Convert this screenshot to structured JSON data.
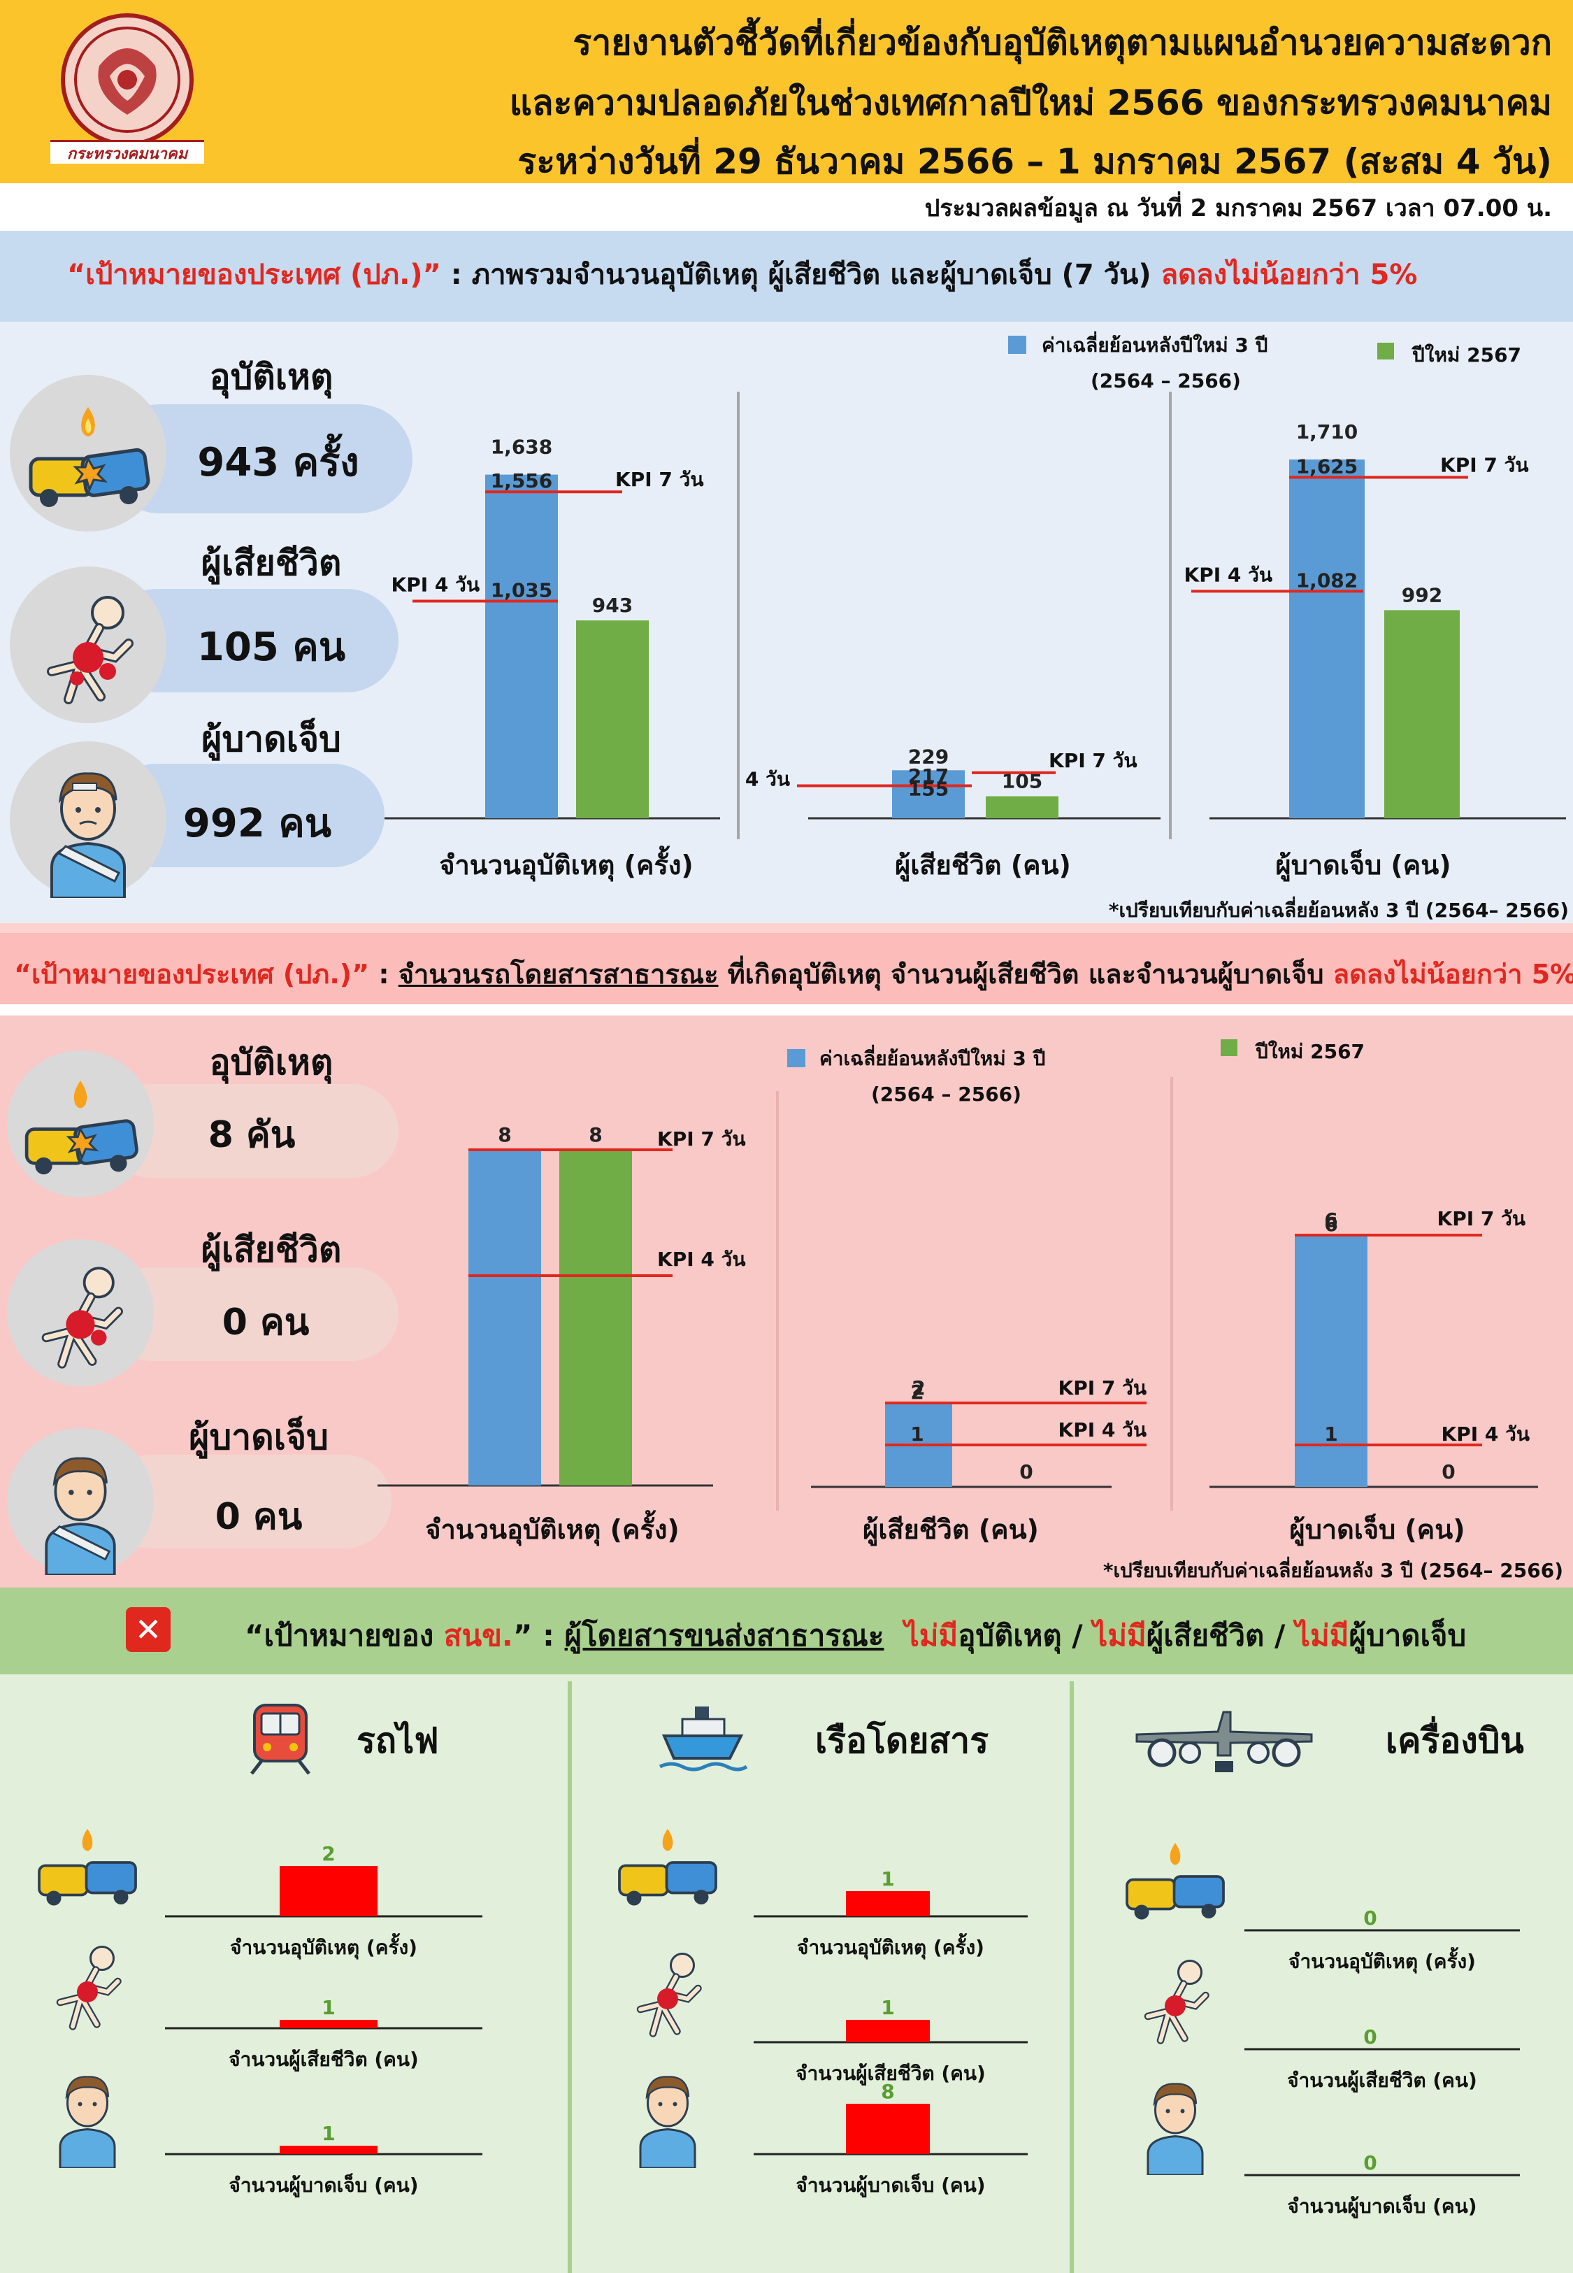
{
  "header": {
    "title_lines": [
      "รายงานตัวชี้วัดที่เกี่ยวข้องกับอุบัติเหตุตามแผนอำนวยความสะดวก",
      "และความปลอดภัยในช่วงเทศกาลปีใหม่ 2566 ของกระทรวงคมนาคม",
      "ระหว่างวันที่ 29 ธันวาคม 2566 – 1 มกราคม 2567 (สะสม 4 วัน)"
    ],
    "seal_text": "กระทรวงคมนาคม",
    "processed": "ประมวลผลข้อมูล ณ วันที่ 2 มกราคม 2567 เวลา 07.00 น."
  },
  "section1": {
    "banner": {
      "quote": "“เป้าหมายของประเทศ (ปภ.)”",
      "middle": " : ภาพรวมจำนวนอุบัติเหตุ ผู้เสียชีวิต และผู้บาดเจ็บ (7 วัน) ",
      "highlight": "ลดลงไม่น้อยกว่า 5%"
    },
    "stats": [
      {
        "label": "อุบัติเหตุ",
        "value": "943 ครั้ง",
        "icon": "car-crash-icon"
      },
      {
        "label": "ผู้เสียชีวิต",
        "value": "105 คน",
        "icon": "falling-person-icon"
      },
      {
        "label": "ผู้บาดเจ็บ",
        "value": "992 คน",
        "icon": "injured-person-icon"
      }
    ],
    "legend": {
      "avg": "ค่าเฉลี่ยย้อนหลังปีใหม่ 3 ปี",
      "avg_years": "(2564 – 2566)",
      "current": "ปีใหม่ 2567"
    },
    "note": "*เปรียบเทียบกับค่าเฉลี่ยย้อนหลัง 3 ปี (2564– 2566)"
  },
  "section2": {
    "banner": {
      "quote": "“เป้าหมายของประเทศ (ปภ.)”",
      "middle_a": " : ",
      "underlined": "จำนวนรถโดยสารสาธารณะ",
      "middle_b": " ที่เกิดอุบัติเหตุ จำนวนผู้เสียชีวิต และจำนวนผู้บาดเจ็บ ",
      "highlight": "ลดลงไม่น้อยกว่า 5%"
    },
    "stats": [
      {
        "label": "อุบัติเหตุ",
        "value": "8 คัน",
        "icon": "car-crash-icon"
      },
      {
        "label": "ผู้เสียชีวิต",
        "value": "0 คน",
        "icon": "falling-person-icon"
      },
      {
        "label": "ผู้บาดเจ็บ",
        "value": "0 คน",
        "icon": "injured-person-icon"
      }
    ],
    "legend": {
      "avg": "ค่าเฉลี่ยย้อนหลังปีใหม่ 3 ปี",
      "avg_years": "(2564 – 2566)",
      "current": "ปีใหม่ 2567"
    },
    "note": "*เปรียบเทียบกับค่าเฉลี่ยย้อนหลัง 3 ปี (2564– 2566)"
  },
  "section3": {
    "banner": {
      "x_mark": "✕",
      "quote": "“เป้าหมายของ ",
      "org": "สนข.",
      "quote_end": "” : ",
      "underlined": "ผู้โดยสารขนส่งสาธารณะ",
      "no1": "ไม่มี",
      "t1": "อุบัติเหตุ / ",
      "no2": "ไม่มี",
      "t2": "ผู้เสียชีวิต / ",
      "no3": "ไม่มี",
      "t3": "ผู้บาดเจ็บ"
    },
    "modes": [
      {
        "name": "รถไฟ",
        "icon": "train-icon"
      },
      {
        "name": "เรือโดยสาร",
        "icon": "ferry-icon"
      },
      {
        "name": "เครื่องบิน",
        "icon": "airplane-icon"
      }
    ]
  },
  "colors": {
    "avg": "#5b9bd5",
    "current": "#70ad47",
    "kpi": "#e0281f",
    "small_bar": "#ff0000",
    "header": "#fcc42b"
  },
  "chart_data": [
    {
      "type": "bar",
      "xlabel": "จำนวนอุบัติเหตุ (ครั้ง)",
      "series": [
        {
          "name": "ค่าเฉลี่ยย้อนหลังปีใหม่ 3 ปี",
          "values": [
            1638
          ]
        },
        {
          "name": "ปีใหม่ 2567",
          "values": [
            943
          ]
        }
      ],
      "kpi": [
        {
          "label": "KPI 7 วัน",
          "value": 1556
        },
        {
          "label": "KPI 4 วัน",
          "value": 1035
        }
      ],
      "ylim": [
        0,
        1750
      ]
    },
    {
      "type": "bar",
      "xlabel": "ผู้เสียชีวิต (คน)",
      "series": [
        {
          "name": "ค่าเฉลี่ยย้อนหลังปีใหม่ 3 ปี",
          "values": [
            229
          ]
        },
        {
          "name": "ปีใหม่ 2567",
          "values": [
            105
          ]
        }
      ],
      "kpi": [
        {
          "label": "KPI 7 วัน",
          "value": 217
        },
        {
          "label": "KPI 4 วัน",
          "value": 155
        }
      ],
      "ylim": [
        0,
        1750
      ]
    },
    {
      "type": "bar",
      "xlabel": "ผู้บาดเจ็บ (คน)",
      "series": [
        {
          "name": "ค่าเฉลี่ยย้อนหลังปีใหม่ 3 ปี",
          "values": [
            1710
          ]
        },
        {
          "name": "ปีใหม่ 2567",
          "values": [
            992
          ]
        }
      ],
      "kpi": [
        {
          "label": "KPI 7 วัน",
          "value": 1625
        },
        {
          "label": "KPI 4 วัน",
          "value": 1082
        }
      ],
      "ylim": [
        0,
        1750
      ]
    },
    {
      "type": "bar",
      "xlabel": "จำนวนอุบัติเหตุ (ครั้ง)",
      "series": [
        {
          "name": "ค่าเฉลี่ยย้อนหลังปีใหม่ 3 ปี",
          "values": [
            8
          ]
        },
        {
          "name": "ปีใหม่ 2567",
          "values": [
            8
          ]
        }
      ],
      "kpi": [
        {
          "label": "KPI 7 วัน",
          "value": 8
        },
        {
          "label": "KPI 4 วัน",
          "value": 5
        }
      ],
      "ylim": [
        0,
        8
      ]
    },
    {
      "type": "bar",
      "xlabel": "ผู้เสียชีวิต (คน)",
      "series": [
        {
          "name": "ค่าเฉลี่ยย้อนหลังปีใหม่ 3 ปี",
          "values": [
            2
          ]
        },
        {
          "name": "ปีใหม่ 2567",
          "values": [
            0
          ]
        }
      ],
      "kpi": [
        {
          "label": "KPI 7 วัน",
          "value": 2
        },
        {
          "label": "KPI 4 วัน",
          "value": 1
        }
      ],
      "ylim": [
        0,
        8
      ]
    },
    {
      "type": "bar",
      "xlabel": "ผู้บาดเจ็บ (คน)",
      "series": [
        {
          "name": "ค่าเฉลี่ยย้อนหลังปีใหม่ 3 ปี",
          "values": [
            6
          ]
        },
        {
          "name": "ปีใหม่ 2567",
          "values": [
            0
          ]
        }
      ],
      "kpi": [
        {
          "label": "KPI 7 วัน",
          "value": 6
        },
        {
          "label": "KPI 4 วัน",
          "value": 1
        }
      ],
      "ylim": [
        0,
        8
      ]
    },
    {
      "type": "bar",
      "mode": "รถไฟ",
      "categories": [
        "จำนวนอุบัติเหตุ (ครั้ง)",
        "จำนวนผู้เสียชีวิต (คน)",
        "จำนวนผู้บาดเจ็บ (คน)"
      ],
      "values": [
        2,
        1,
        1
      ]
    },
    {
      "type": "bar",
      "mode": "เรือโดยสาร",
      "categories": [
        "จำนวนอุบัติเหตุ (ครั้ง)",
        "จำนวนผู้เสียชีวิต (คน)",
        "จำนวนผู้บาดเจ็บ (คน)"
      ],
      "values": [
        1,
        1,
        8
      ]
    },
    {
      "type": "bar",
      "mode": "เครื่องบิน",
      "categories": [
        "จำนวนอุบัติเหตุ (ครั้ง)",
        "จำนวนผู้เสียชีวิต (คน)",
        "จำนวนผู้บาดเจ็บ (คน)"
      ],
      "values": [
        0,
        0,
        0
      ]
    }
  ]
}
